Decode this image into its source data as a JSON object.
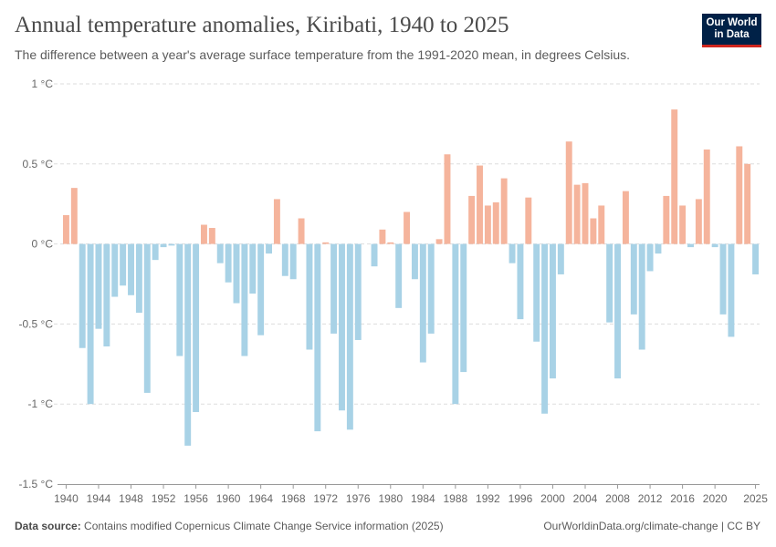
{
  "header": {
    "title": "Annual temperature anomalies, Kiribati, 1940 to 2025",
    "subtitle": "The difference between a year's average surface temperature from the 1991-2020 mean, in degrees Celsius."
  },
  "logo": {
    "line1": "Our World",
    "line2": "in Data",
    "bg_color": "#002147",
    "accent_color": "#ce261e"
  },
  "footer": {
    "source_label": "Data source:",
    "source_text": "Contains modified Copernicus Climate Change Service information (2025)",
    "right_text": "OurWorldinData.org/climate-change | CC BY"
  },
  "chart_data": {
    "type": "bar",
    "title": "Annual temperature anomalies, Kiribati, 1940 to 2025",
    "xlabel": "",
    "ylabel": "",
    "ylim": [
      -1.5,
      1
    ],
    "yticks": [
      -1.5,
      -1,
      -0.5,
      0,
      0.5,
      1
    ],
    "ytick_labels": [
      "-1.5 °C",
      "-1 °C",
      "-0.5 °C",
      "0 °C",
      "0.5 °C",
      "1 °C"
    ],
    "xticks": [
      1940,
      1944,
      1948,
      1952,
      1956,
      1960,
      1964,
      1968,
      1972,
      1976,
      1980,
      1984,
      1988,
      1992,
      1996,
      2000,
      2004,
      2008,
      2012,
      2016,
      2020,
      2025
    ],
    "grid": true,
    "positive_color": "#f5b49c",
    "negative_color": "#a8d2e6",
    "x_start": 1940,
    "values": [
      0.18,
      0.35,
      -0.65,
      -1.0,
      -0.53,
      -0.64,
      -0.33,
      -0.26,
      -0.32,
      -0.43,
      -0.93,
      -0.1,
      -0.02,
      -0.01,
      -0.7,
      -1.26,
      -1.05,
      0.12,
      0.1,
      -0.12,
      -0.24,
      -0.37,
      -0.7,
      -0.31,
      -0.57,
      -0.06,
      0.28,
      -0.2,
      -0.22,
      0.16,
      -0.66,
      -1.17,
      0.01,
      -0.56,
      -1.04,
      -1.16,
      -0.6,
      0.0,
      -0.14,
      0.09,
      0.01,
      -0.4,
      0.2,
      -0.22,
      -0.74,
      -0.56,
      0.03,
      0.56,
      -1.0,
      -0.8,
      0.3,
      0.49,
      0.24,
      0.26,
      0.41,
      -0.12,
      -0.47,
      0.29,
      -0.61,
      -1.06,
      -0.84,
      -0.19,
      0.64,
      0.37,
      0.38,
      0.16,
      0.24,
      -0.49,
      -0.84,
      0.33,
      -0.44,
      -0.66,
      -0.17,
      -0.06,
      0.3,
      0.84,
      0.24,
      -0.02,
      0.28,
      0.59,
      -0.02,
      -0.44,
      -0.58,
      0.61,
      0.5,
      -0.19
    ]
  }
}
